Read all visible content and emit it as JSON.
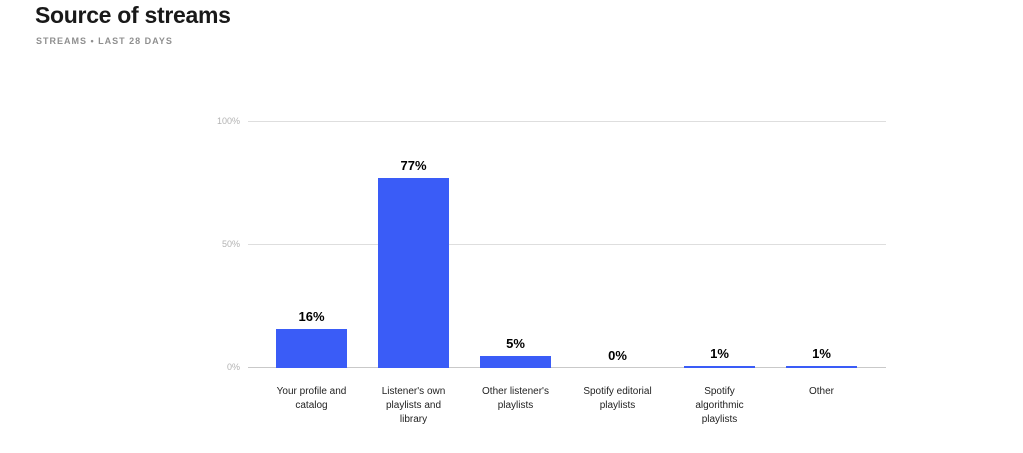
{
  "header": {
    "title": "Source of streams",
    "subtitle": "STREAMS • LAST 28 DAYS"
  },
  "colors": {
    "bar": "#3A5CF7",
    "gridline": "#DEDEDE",
    "baseline": "#C9C9C9",
    "ytick_text": "#B3B3B3",
    "title_text": "#191919",
    "subtitle_text": "#8F8F8F",
    "value_label_text": "#000000",
    "category_label_text": "#222222",
    "background": "#FFFFFF"
  },
  "chart_data": {
    "type": "bar",
    "title": "Source of streams",
    "subtitle": "STREAMS • LAST 28 DAYS",
    "categories": [
      "Your profile and catalog",
      "Listener's own playlists and library",
      "Other listener's playlists",
      "Spotify editorial playlists",
      "Spotify algorithmic playlists",
      "Other"
    ],
    "category_lines": [
      [
        "Your profile and",
        "catalog"
      ],
      [
        "Listener's own",
        "playlists and",
        "library"
      ],
      [
        "Other listener's",
        "playlists"
      ],
      [
        "Spotify editorial",
        "playlists"
      ],
      [
        "Spotify",
        "algorithmic",
        "playlists"
      ],
      [
        "Other"
      ]
    ],
    "values": [
      16,
      77,
      5,
      0,
      1,
      1
    ],
    "value_labels": [
      "16%",
      "77%",
      "5%",
      "0%",
      "1%",
      "1%"
    ],
    "unit": "percent",
    "xlabel": "",
    "ylabel": "",
    "ylim": [
      0,
      100
    ],
    "ytick_labels": [
      "0%",
      "50%",
      "100%"
    ],
    "grid": true,
    "legend": false,
    "bar_color": "#3A5CF7"
  }
}
